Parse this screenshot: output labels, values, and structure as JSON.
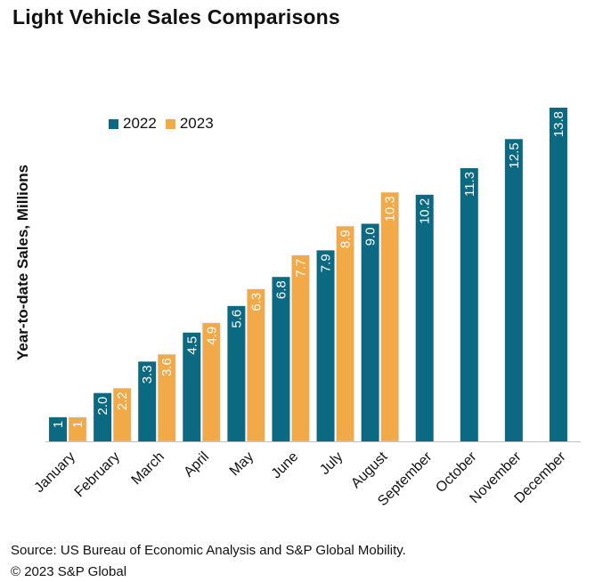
{
  "chart_data": {
    "type": "bar",
    "title": "Light Vehicle Sales Comparisons",
    "ylabel": "Year-to-date Sales, Millions",
    "xlabel": "",
    "categories": [
      "January",
      "February",
      "March",
      "April",
      "May",
      "June",
      "July",
      "August",
      "September",
      "October",
      "November",
      "December"
    ],
    "series": [
      {
        "name": "2022",
        "color": "#0b6a82",
        "values": [
          1.0,
          2.0,
          3.3,
          4.5,
          5.6,
          6.8,
          7.9,
          9.0,
          10.2,
          11.3,
          12.5,
          13.8
        ],
        "labels": [
          "1",
          "2.0",
          "3.3",
          "4.5",
          "5.6",
          "6.8",
          "7.9",
          "9.0",
          "10.2",
          "11.3",
          "12.5",
          "13.8"
        ]
      },
      {
        "name": "2023",
        "color": "#f2a947",
        "values": [
          1.0,
          2.2,
          3.6,
          4.9,
          6.3,
          7.7,
          8.9,
          10.3,
          null,
          null,
          null,
          null
        ],
        "labels": [
          "1",
          "2.2",
          "3.6",
          "4.9",
          "6.3",
          "7.7",
          "8.9",
          "10.3",
          null,
          null,
          null,
          null
        ]
      }
    ],
    "ylim": [
      0,
      13.8
    ],
    "grid": false,
    "legend": "top-left"
  },
  "footer": {
    "source": "Source: US Bureau of Economic Analysis and S&P Global Mobility.",
    "copyright": "© 2023 S&P Global"
  }
}
